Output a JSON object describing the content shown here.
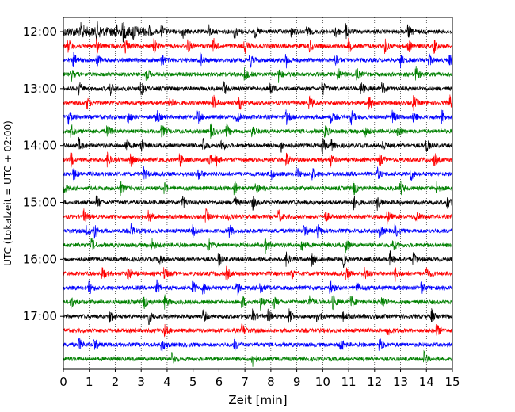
{
  "chart_data": {
    "type": "line",
    "title": "",
    "xlabel": "Zeit  [min]",
    "ylabel": "UTC (Lokalzeit = UTC + 02:00)",
    "xlim": [
      0,
      15
    ],
    "x_ticks": [
      "0",
      "1",
      "2",
      "3",
      "4",
      "5",
      "6",
      "7",
      "8",
      "9",
      "10",
      "11",
      "12",
      "13",
      "14",
      "15"
    ],
    "y_ticks": [
      "12:00",
      "13:00",
      "14:00",
      "15:00",
      "16:00",
      "17:00"
    ],
    "grid": "vertical dotted at each minute",
    "trace_colors": [
      "#000000",
      "#ff0000",
      "#0000ff",
      "#008000"
    ],
    "rows": [
      {
        "start": "12:00",
        "events": [
          0.7,
          1.3,
          2.0,
          2.3,
          2.7,
          3.3,
          3.8,
          4.6,
          5.6,
          6.6,
          7.4,
          8.8,
          9.4,
          10.5,
          10.9,
          13.3
        ]
      },
      {
        "start": "12:15",
        "events": [
          0.2,
          1.3,
          2.4,
          3.5,
          4.8,
          5.8,
          7.0,
          9.5,
          11.0,
          12.4,
          13.3,
          14.3
        ]
      },
      {
        "start": "12:30",
        "events": [
          0.4,
          1.3,
          3.8,
          5.3,
          7.2,
          8.6,
          10.5,
          13.0,
          14.1,
          14.9
        ]
      },
      {
        "start": "12:45",
        "events": [
          0.3,
          3.2,
          7.0,
          8.3,
          10.6,
          11.3,
          13.6
        ]
      },
      {
        "start": "13:00",
        "events": [
          0.6,
          1.8,
          3.0,
          6.2,
          8.0,
          10.0,
          11.5,
          12.3
        ]
      },
      {
        "start": "13:15",
        "events": [
          0.9,
          4.1,
          5.8,
          6.8,
          9.5,
          11.8,
          13.5,
          14.9
        ]
      },
      {
        "start": "13:30",
        "events": [
          0.2,
          2.5,
          3.6,
          5.2,
          6.7,
          8.6,
          10.3,
          11.1,
          12.7,
          13.5,
          14.6
        ]
      },
      {
        "start": "13:45",
        "events": [
          0.3,
          1.7,
          3.8,
          5.7,
          6.3,
          7.3,
          10.1,
          11.6,
          12.9
        ]
      },
      {
        "start": "14:00",
        "events": [
          0.6,
          2.4,
          3.0,
          5.4,
          6.1,
          8.4,
          10.0,
          10.3,
          12.3,
          14.0
        ]
      },
      {
        "start": "14:15",
        "events": [
          0.3,
          1.7,
          2.6,
          4.5,
          5.6,
          5.9,
          8.6,
          10.3,
          12.2,
          14.3
        ]
      },
      {
        "start": "14:30",
        "events": [
          0.4,
          3.1,
          5.2,
          8.0,
          9.0,
          9.6,
          12.1,
          13.4
        ]
      },
      {
        "start": "14:45",
        "events": [
          0.0,
          2.2,
          3.9,
          6.6,
          7.4,
          11.2,
          13.0,
          14.4
        ]
      },
      {
        "start": "15:00",
        "events": [
          1.3,
          4.6,
          6.6,
          7.3,
          11.2,
          12.1,
          14.8
        ]
      },
      {
        "start": "15:15",
        "events": [
          0.8,
          3.3,
          5.5,
          6.3,
          8.3,
          10.1,
          12.5,
          13.6
        ]
      },
      {
        "start": "15:30",
        "events": [
          0.9,
          1.2,
          2.6,
          5.0,
          6.4,
          9.3,
          9.8,
          12.2,
          12.8
        ]
      },
      {
        "start": "15:45",
        "events": [
          1.1,
          3.4,
          5.6,
          7.8,
          9.2,
          10.9,
          12.7
        ]
      },
      {
        "start": "16:00",
        "events": [
          3.7,
          6.0,
          8.6,
          9.6,
          10.8,
          12.6,
          13.5
        ]
      },
      {
        "start": "16:15",
        "events": [
          1.5,
          2.5,
          3.9,
          6.3,
          8.8,
          10.9,
          11.6,
          12.8,
          14.0
        ]
      },
      {
        "start": "16:30",
        "events": [
          1.0,
          3.6,
          5.0,
          5.4,
          6.7,
          7.6,
          10.3,
          11.3,
          13.8
        ]
      },
      {
        "start": "16:45",
        "events": [
          0.3,
          3.1,
          3.9,
          6.9,
          7.6,
          8.1,
          9.5,
          10.4,
          11.1,
          12.3
        ]
      },
      {
        "start": "17:00",
        "events": [
          1.8,
          3.3,
          5.4,
          7.3,
          7.9,
          8.7,
          9.8,
          10.8,
          14.2
        ]
      },
      {
        "start": "17:15",
        "events": [
          3.9,
          6.9,
          12.5,
          14.4
        ]
      },
      {
        "start": "17:30",
        "events": [
          0.6,
          1.2,
          3.8,
          6.6,
          10.7,
          12.2
        ]
      },
      {
        "start": "17:45",
        "events": [
          4.2,
          7.3,
          13.9
        ]
      }
    ]
  }
}
